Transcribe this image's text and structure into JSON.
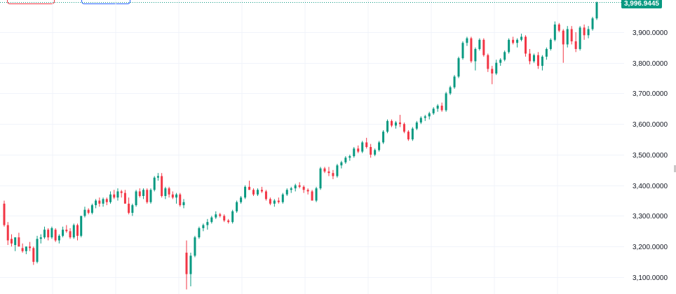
{
  "chart_data": {
    "type": "candlestick",
    "last_price_label": "3,996.9445",
    "y_axis": {
      "ticks": [
        "3,900.0000",
        "3,800.0000",
        "3,700.0000",
        "3,600.0000",
        "3,500.0000",
        "3,400.0000",
        "3,300.0000",
        "3,200.0000",
        "3,100.0000"
      ],
      "tick_values": [
        3900,
        3800,
        3700,
        3600,
        3500,
        3400,
        3300,
        3200,
        3100
      ],
      "range": [
        3045,
        4005
      ]
    },
    "colors": {
      "up": "#089981",
      "down": "#f23645",
      "grid": "#f0f3fa",
      "text": "#131722"
    },
    "grid": true,
    "candles": [
      [
        3340,
        3350,
        3265,
        3270
      ],
      [
        3270,
        3280,
        3205,
        3220
      ],
      [
        3225,
        3240,
        3200,
        3210
      ],
      [
        3205,
        3230,
        3185,
        3230
      ],
      [
        3230,
        3245,
        3200,
        3200
      ],
      [
        3195,
        3210,
        3180,
        3185
      ],
      [
        3185,
        3200,
        3175,
        3200
      ],
      [
        3200,
        3215,
        3185,
        3195
      ],
      [
        3195,
        3200,
        3140,
        3150
      ],
      [
        3150,
        3235,
        3145,
        3225
      ],
      [
        3225,
        3240,
        3210,
        3230
      ],
      [
        3230,
        3265,
        3225,
        3255
      ],
      [
        3255,
        3260,
        3220,
        3230
      ],
      [
        3230,
        3265,
        3225,
        3260
      ],
      [
        3255,
        3260,
        3215,
        3220
      ],
      [
        3220,
        3240,
        3210,
        3235
      ],
      [
        3235,
        3265,
        3230,
        3255
      ],
      [
        3255,
        3270,
        3245,
        3250
      ],
      [
        3250,
        3260,
        3225,
        3230
      ],
      [
        3230,
        3275,
        3225,
        3270
      ],
      [
        3270,
        3275,
        3220,
        3235
      ],
      [
        3235,
        3300,
        3230,
        3300
      ],
      [
        3300,
        3330,
        3295,
        3320
      ],
      [
        3320,
        3325,
        3305,
        3310
      ],
      [
        3310,
        3340,
        3305,
        3335
      ],
      [
        3335,
        3355,
        3325,
        3350
      ],
      [
        3350,
        3360,
        3330,
        3340
      ],
      [
        3340,
        3360,
        3330,
        3355
      ],
      [
        3355,
        3360,
        3335,
        3345
      ],
      [
        3345,
        3380,
        3340,
        3370
      ],
      [
        3370,
        3385,
        3355,
        3360
      ],
      [
        3360,
        3390,
        3350,
        3380
      ],
      [
        3380,
        3385,
        3360,
        3375
      ],
      [
        3375,
        3385,
        3340,
        3340
      ],
      [
        3340,
        3360,
        3305,
        3310
      ],
      [
        3310,
        3340,
        3300,
        3335
      ],
      [
        3335,
        3385,
        3330,
        3380
      ],
      [
        3380,
        3390,
        3360,
        3365
      ],
      [
        3365,
        3390,
        3355,
        3385
      ],
      [
        3385,
        3390,
        3340,
        3345
      ],
      [
        3345,
        3390,
        3340,
        3385
      ],
      [
        3385,
        3430,
        3380,
        3425
      ],
      [
        3425,
        3440,
        3415,
        3430
      ],
      [
        3430,
        3440,
        3360,
        3365
      ],
      [
        3365,
        3395,
        3355,
        3390
      ],
      [
        3390,
        3395,
        3360,
        3370
      ],
      [
        3370,
        3380,
        3355,
        3360
      ],
      [
        3360,
        3375,
        3340,
        3370
      ],
      [
        3370,
        3375,
        3330,
        3335
      ],
      [
        3335,
        3355,
        3325,
        3345
      ],
      [
        3180,
        3220,
        3060,
        3110
      ],
      [
        3110,
        3180,
        3070,
        3170
      ],
      [
        3170,
        3235,
        3165,
        3230
      ],
      [
        3230,
        3265,
        3225,
        3260
      ],
      [
        3260,
        3275,
        3250,
        3270
      ],
      [
        3270,
        3290,
        3255,
        3280
      ],
      [
        3280,
        3300,
        3275,
        3295
      ],
      [
        3295,
        3315,
        3290,
        3305
      ],
      [
        3305,
        3310,
        3295,
        3300
      ],
      [
        3300,
        3305,
        3280,
        3285
      ],
      [
        3285,
        3290,
        3275,
        3280
      ],
      [
        3280,
        3320,
        3275,
        3315
      ],
      [
        3315,
        3350,
        3310,
        3345
      ],
      [
        3345,
        3365,
        3340,
        3360
      ],
      [
        3360,
        3400,
        3355,
        3395
      ],
      [
        3395,
        3415,
        3385,
        3385
      ],
      [
        3385,
        3390,
        3365,
        3370
      ],
      [
        3370,
        3390,
        3365,
        3385
      ],
      [
        3385,
        3395,
        3375,
        3380
      ],
      [
        3380,
        3385,
        3350,
        3355
      ],
      [
        3355,
        3360,
        3335,
        3340
      ],
      [
        3340,
        3355,
        3330,
        3350
      ],
      [
        3350,
        3360,
        3340,
        3345
      ],
      [
        3345,
        3375,
        3340,
        3370
      ],
      [
        3370,
        3390,
        3365,
        3385
      ],
      [
        3385,
        3395,
        3375,
        3390
      ],
      [
        3390,
        3405,
        3380,
        3400
      ],
      [
        3400,
        3410,
        3390,
        3395
      ],
      [
        3395,
        3400,
        3375,
        3385
      ],
      [
        3385,
        3390,
        3370,
        3380
      ],
      [
        3380,
        3385,
        3350,
        3350
      ],
      [
        3350,
        3395,
        3345,
        3390
      ],
      [
        3390,
        3460,
        3385,
        3455
      ],
      [
        3455,
        3460,
        3440,
        3445
      ],
      [
        3445,
        3460,
        3430,
        3440
      ],
      [
        3440,
        3450,
        3420,
        3430
      ],
      [
        3430,
        3470,
        3425,
        3465
      ],
      [
        3465,
        3480,
        3455,
        3475
      ],
      [
        3475,
        3495,
        3470,
        3490
      ],
      [
        3490,
        3500,
        3480,
        3495
      ],
      [
        3495,
        3525,
        3490,
        3520
      ],
      [
        3520,
        3530,
        3505,
        3510
      ],
      [
        3510,
        3545,
        3505,
        3540
      ],
      [
        3540,
        3555,
        3520,
        3525
      ],
      [
        3525,
        3535,
        3490,
        3500
      ],
      [
        3500,
        3520,
        3495,
        3515
      ],
      [
        3515,
        3545,
        3510,
        3540
      ],
      [
        3540,
        3580,
        3535,
        3575
      ],
      [
        3575,
        3615,
        3570,
        3610
      ],
      [
        3610,
        3615,
        3590,
        3595
      ],
      [
        3595,
        3610,
        3585,
        3605
      ],
      [
        3605,
        3630,
        3590,
        3600
      ],
      [
        3600,
        3605,
        3570,
        3575
      ],
      [
        3575,
        3580,
        3545,
        3550
      ],
      [
        3550,
        3590,
        3545,
        3585
      ],
      [
        3585,
        3610,
        3580,
        3605
      ],
      [
        3605,
        3625,
        3600,
        3620
      ],
      [
        3620,
        3630,
        3610,
        3625
      ],
      [
        3625,
        3640,
        3615,
        3635
      ],
      [
        3635,
        3655,
        3630,
        3650
      ],
      [
        3650,
        3665,
        3640,
        3660
      ],
      [
        3660,
        3670,
        3640,
        3645
      ],
      [
        3645,
        3705,
        3640,
        3700
      ],
      [
        3700,
        3725,
        3695,
        3720
      ],
      [
        3720,
        3760,
        3715,
        3755
      ],
      [
        3755,
        3820,
        3750,
        3815
      ],
      [
        3815,
        3870,
        3810,
        3865
      ],
      [
        3865,
        3885,
        3855,
        3880
      ],
      [
        3880,
        3885,
        3800,
        3805
      ],
      [
        3805,
        3850,
        3775,
        3845
      ],
      [
        3845,
        3880,
        3840,
        3875
      ],
      [
        3875,
        3880,
        3820,
        3825
      ],
      [
        3825,
        3830,
        3770,
        3780
      ],
      [
        3780,
        3790,
        3730,
        3765
      ],
      [
        3765,
        3810,
        3760,
        3800
      ],
      [
        3800,
        3815,
        3790,
        3810
      ],
      [
        3810,
        3840,
        3805,
        3835
      ],
      [
        3835,
        3880,
        3830,
        3875
      ],
      [
        3875,
        3885,
        3860,
        3865
      ],
      [
        3865,
        3880,
        3850,
        3875
      ],
      [
        3875,
        3895,
        3870,
        3885
      ],
      [
        3885,
        3890,
        3820,
        3830
      ],
      [
        3830,
        3845,
        3795,
        3805
      ],
      [
        3805,
        3830,
        3800,
        3825
      ],
      [
        3825,
        3835,
        3780,
        3790
      ],
      [
        3790,
        3825,
        3775,
        3820
      ],
      [
        3820,
        3850,
        3810,
        3845
      ],
      [
        3845,
        3880,
        3840,
        3875
      ],
      [
        3875,
        3935,
        3870,
        3925
      ],
      [
        3925,
        3930,
        3900,
        3905
      ],
      [
        3905,
        3910,
        3800,
        3860
      ],
      [
        3860,
        3920,
        3850,
        3910
      ],
      [
        3910,
        3920,
        3860,
        3870
      ],
      [
        3870,
        3900,
        3835,
        3845
      ],
      [
        3845,
        3920,
        3840,
        3915
      ],
      [
        3915,
        3925,
        3875,
        3890
      ],
      [
        3890,
        3920,
        3880,
        3910
      ],
      [
        3910,
        3950,
        3905,
        3945
      ],
      [
        3945,
        4000,
        3940,
        3997
      ]
    ]
  }
}
